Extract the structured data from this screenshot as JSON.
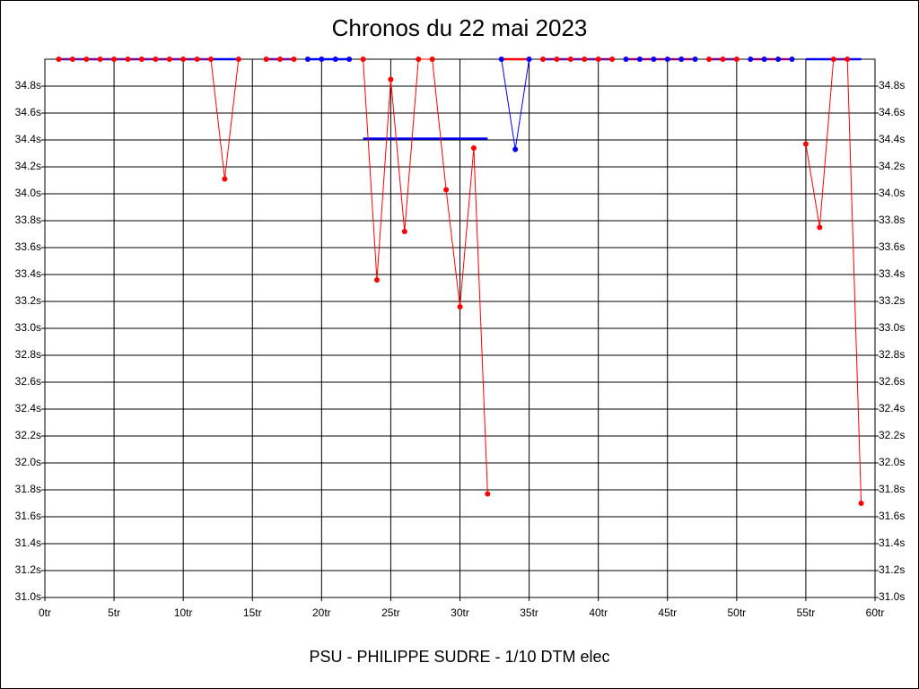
{
  "chart_data": {
    "type": "line",
    "title": "Chronos du 22 mai 2023",
    "x_label": "PSU - PHILIPPE SUDRE - 1/10 DTM elec",
    "xlim": [
      0,
      60
    ],
    "ylim": [
      31.0,
      35.0
    ],
    "grid": true,
    "xticks": [
      {
        "value": 0,
        "label": "0tr"
      },
      {
        "value": 5,
        "label": "5tr"
      },
      {
        "value": 10,
        "label": "10tr"
      },
      {
        "value": 15,
        "label": "15tr"
      },
      {
        "value": 20,
        "label": "20tr"
      },
      {
        "value": 25,
        "label": "25tr"
      },
      {
        "value": 30,
        "label": "30tr"
      },
      {
        "value": 35,
        "label": "35tr"
      },
      {
        "value": 40,
        "label": "40tr"
      },
      {
        "value": 45,
        "label": "45tr"
      },
      {
        "value": 50,
        "label": "50tr"
      },
      {
        "value": 55,
        "label": "55tr"
      },
      {
        "value": 60,
        "label": "60tr"
      }
    ],
    "yticks": [
      {
        "value": 31.0,
        "label": "31.0s"
      },
      {
        "value": 31.2,
        "label": "31.2s"
      },
      {
        "value": 31.4,
        "label": "31.4s"
      },
      {
        "value": 31.6,
        "label": "31.6s"
      },
      {
        "value": 31.8,
        "label": "31.8s"
      },
      {
        "value": 32.0,
        "label": "32.0s"
      },
      {
        "value": 32.2,
        "label": "32.2s"
      },
      {
        "value": 32.4,
        "label": "32.4s"
      },
      {
        "value": 32.6,
        "label": "32.6s"
      },
      {
        "value": 32.8,
        "label": "32.8s"
      },
      {
        "value": 33.0,
        "label": "33.0s"
      },
      {
        "value": 33.2,
        "label": "33.2s"
      },
      {
        "value": 33.4,
        "label": "33.4s"
      },
      {
        "value": 33.6,
        "label": "33.6s"
      },
      {
        "value": 33.8,
        "label": "33.8s"
      },
      {
        "value": 34.0,
        "label": "34.0s"
      },
      {
        "value": 34.2,
        "label": "34.2s"
      },
      {
        "value": 34.4,
        "label": "34.4s"
      },
      {
        "value": 34.6,
        "label": "34.6s"
      },
      {
        "value": 34.8,
        "label": "34.8s"
      }
    ],
    "series": [
      {
        "color": "#0000ff",
        "markers": false,
        "x": [
          1,
          14
        ],
        "values": [
          35.0,
          35.0
        ]
      },
      {
        "color": "#ff0000",
        "markers": true,
        "x": [
          1,
          2,
          3,
          4,
          5,
          6,
          7,
          8,
          9,
          10,
          11,
          12,
          13,
          14
        ],
        "values": [
          35.0,
          35.0,
          35.0,
          35.0,
          35.0,
          35.0,
          35.0,
          35.0,
          35.0,
          35.0,
          35.0,
          35.0,
          34.11,
          35.0
        ]
      },
      {
        "color": "#0000ff",
        "markers": false,
        "x": [
          16,
          18
        ],
        "values": [
          35.0,
          35.0
        ]
      },
      {
        "color": "#ff0000",
        "markers": true,
        "x": [
          16,
          17,
          18
        ],
        "values": [
          35.0,
          35.0,
          35.0
        ]
      },
      {
        "color": "#0000ff",
        "markers": false,
        "x": [
          19,
          22
        ],
        "values": [
          35.0,
          35.0
        ]
      },
      {
        "color": "#0000ff",
        "markers": true,
        "x": [
          19,
          20,
          21,
          22
        ],
        "values": [
          35.0,
          35.0,
          35.0,
          35.0
        ]
      },
      {
        "color": "#0000ff",
        "markers": false,
        "x": [
          23,
          32
        ],
        "values": [
          34.41,
          34.41
        ]
      },
      {
        "color": "#ff0000",
        "markers": true,
        "x": [
          23,
          24,
          25,
          26,
          27,
          28,
          29,
          30,
          31,
          32
        ],
        "values": [
          35.0,
          33.36,
          34.85,
          33.72,
          35.0,
          35.0,
          34.03,
          33.16,
          34.34,
          31.77
        ]
      },
      {
        "color": "#ff0000",
        "markers": false,
        "x": [
          33,
          35
        ],
        "values": [
          35.0,
          35.0
        ]
      },
      {
        "color": "#0000ff",
        "markers": true,
        "x": [
          33,
          34,
          35
        ],
        "values": [
          35.0,
          34.33,
          35.0
        ]
      },
      {
        "color": "#0000ff",
        "markers": false,
        "x": [
          36,
          41
        ],
        "values": [
          35.0,
          35.0
        ]
      },
      {
        "color": "#ff0000",
        "markers": true,
        "x": [
          36,
          37,
          38,
          39,
          40,
          41
        ],
        "values": [
          35.0,
          35.0,
          35.0,
          35.0,
          35.0,
          35.0
        ]
      },
      {
        "color": "#ff0000",
        "markers": false,
        "x": [
          42,
          47
        ],
        "values": [
          35.0,
          35.0
        ]
      },
      {
        "color": "#0000ff",
        "markers": true,
        "x": [
          42,
          43,
          44,
          45,
          46,
          47
        ],
        "values": [
          35.0,
          35.0,
          35.0,
          35.0,
          35.0,
          35.0
        ]
      },
      {
        "color": "#0000ff",
        "markers": false,
        "x": [
          48,
          50
        ],
        "values": [
          35.0,
          35.0
        ]
      },
      {
        "color": "#ff0000",
        "markers": true,
        "x": [
          48,
          49,
          50
        ],
        "values": [
          35.0,
          35.0,
          35.0
        ]
      },
      {
        "color": "#ff0000",
        "markers": false,
        "x": [
          51,
          54
        ],
        "values": [
          35.0,
          35.0
        ]
      },
      {
        "color": "#0000ff",
        "markers": true,
        "x": [
          51,
          52,
          53,
          54
        ],
        "values": [
          35.0,
          35.0,
          35.0,
          35.0
        ]
      },
      {
        "color": "#0000ff",
        "markers": false,
        "x": [
          55,
          59
        ],
        "values": [
          35.0,
          35.0
        ]
      },
      {
        "color": "#ff0000",
        "markers": true,
        "x": [
          55,
          56,
          57,
          58,
          59
        ],
        "values": [
          34.37,
          33.75,
          35.0,
          35.0,
          31.7
        ]
      }
    ]
  }
}
